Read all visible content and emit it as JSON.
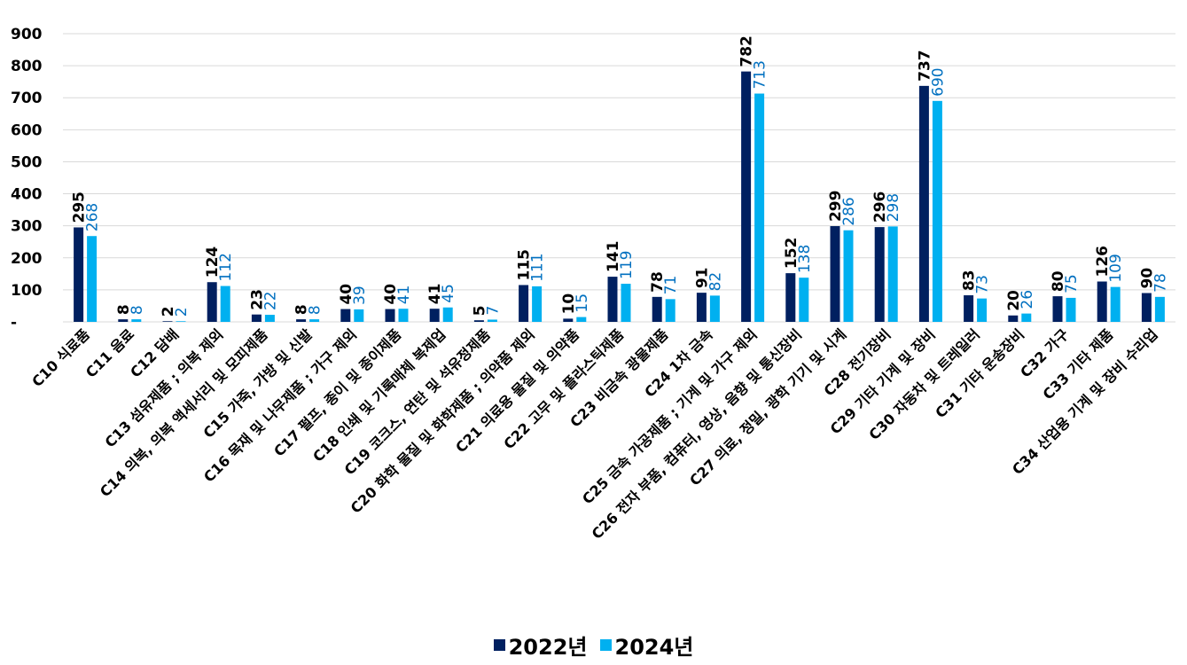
{
  "chart_data": {
    "type": "bar",
    "title": "",
    "xlabel": "",
    "ylabel": "",
    "ylim": [
      0,
      900
    ],
    "yticks": [
      0,
      100,
      200,
      300,
      400,
      500,
      600,
      700,
      800,
      900
    ],
    "ytick_labels": [
      "-",
      "100",
      "200",
      "300",
      "400",
      "500",
      "600",
      "700",
      "800",
      "900"
    ],
    "grid": true,
    "legend_position": "bottom",
    "categories": [
      "C10 식료품",
      "C11 음료",
      "C12 담배",
      "C13 섬유제품 ; 의복 제외",
      "C14 의복, 의복 액세서리 및 모피제품",
      "C15 가죽, 가방 및 신발",
      "C16 목재 및 나무제품 ; 가구 제외",
      "C17 펄프, 종이 및 종이제품",
      "C18 인쇄 및 기록매체 복제업",
      "C19 코크스, 연탄 및 석유정제품",
      "C20 화학 물질 및 화학제품 ; 의약품 제외",
      "C21 의료용 물질 및 의약품",
      "C22 고무 및 플라스틱제품",
      "C23 비금속 광물제품",
      "C24 1차 금속",
      "C25 금속 가공제품 ; 기계 및 가구 제외",
      "C26 전자 부품, 컴퓨터, 영상, 음향 및 통신장비",
      "C27 의료, 정밀, 광학 기기 및 시계",
      "C28 전기장비",
      "C29 기타 기계 및 장비",
      "C30 자동차 및 트레일러",
      "C31 기타 운송장비",
      "C32 가구",
      "C33 기타 제품",
      "C34 산업용 기계 및 장비 수리업"
    ],
    "series": [
      {
        "name": "2022년",
        "color": "#002060",
        "label_color": "#000000",
        "values": [
          295,
          8,
          2,
          124,
          23,
          8,
          40,
          40,
          41,
          5,
          115,
          10,
          141,
          78,
          91,
          782,
          152,
          299,
          296,
          737,
          83,
          20,
          80,
          126,
          90
        ]
      },
      {
        "name": "2024년",
        "color": "#00B0F0",
        "label_color": "#0070C0",
        "values": [
          268,
          8,
          2,
          112,
          22,
          8,
          39,
          41,
          45,
          7,
          111,
          15,
          119,
          71,
          82,
          713,
          138,
          286,
          298,
          690,
          73,
          26,
          75,
          109,
          78
        ]
      }
    ]
  }
}
